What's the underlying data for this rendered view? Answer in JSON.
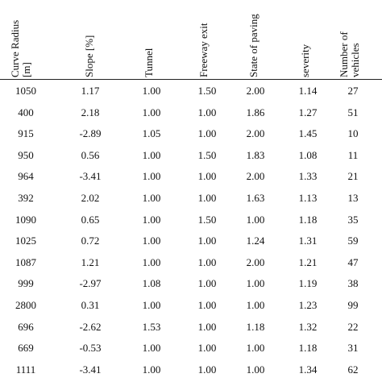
{
  "table": {
    "columns": [
      {
        "key": "curve_radius",
        "label": "Curve Radius\n[m]"
      },
      {
        "key": "slope",
        "label": "Slope [%]"
      },
      {
        "key": "tunnel",
        "label": "Tunnel"
      },
      {
        "key": "freeway_exit",
        "label": "Freeway exit"
      },
      {
        "key": "state_of_paving",
        "label": "State of paving"
      },
      {
        "key": "severity",
        "label": "severity"
      },
      {
        "key": "number_of_vehicles",
        "label": "Number of\nvehicles"
      }
    ],
    "rows": [
      [
        "1050",
        "1.17",
        "1.00",
        "1.50",
        "2.00",
        "1.14",
        "27"
      ],
      [
        "400",
        "2.18",
        "1.00",
        "1.00",
        "1.86",
        "1.27",
        "51"
      ],
      [
        "915",
        "-2.89",
        "1.05",
        "1.00",
        "2.00",
        "1.45",
        "10"
      ],
      [
        "950",
        "0.56",
        "1.00",
        "1.50",
        "1.83",
        "1.08",
        "11"
      ],
      [
        "964",
        "-3.41",
        "1.00",
        "1.00",
        "2.00",
        "1.33",
        "21"
      ],
      [
        "392",
        "2.02",
        "1.00",
        "1.00",
        "1.63",
        "1.13",
        "13"
      ],
      [
        "1090",
        "0.65",
        "1.00",
        "1.50",
        "1.00",
        "1.18",
        "35"
      ],
      [
        "1025",
        "0.72",
        "1.00",
        "1.00",
        "1.24",
        "1.31",
        "59"
      ],
      [
        "1087",
        "1.21",
        "1.00",
        "1.00",
        "2.00",
        "1.21",
        "47"
      ],
      [
        "999",
        "-2.97",
        "1.08",
        "1.00",
        "1.00",
        "1.19",
        "38"
      ],
      [
        "2800",
        "0.31",
        "1.00",
        "1.00",
        "1.00",
        "1.23",
        "99"
      ],
      [
        "696",
        "-2.62",
        "1.53",
        "1.00",
        "1.18",
        "1.32",
        "22"
      ],
      [
        "669",
        "-0.53",
        "1.00",
        "1.00",
        "1.00",
        "1.18",
        "31"
      ],
      [
        "1111",
        "-3.41",
        "1.00",
        "1.00",
        "1.00",
        "1.34",
        "62"
      ]
    ]
  }
}
